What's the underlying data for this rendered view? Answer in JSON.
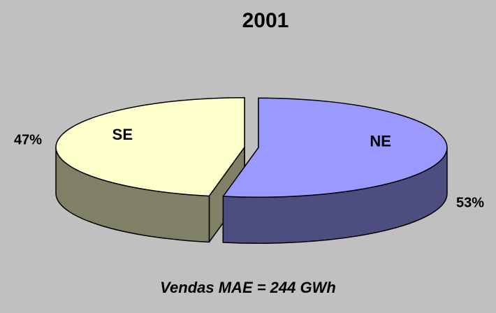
{
  "chart_data": {
    "type": "pie",
    "title": "2001",
    "categories": [
      "NE",
      "SE"
    ],
    "values": [
      53,
      47
    ],
    "value_labels": [
      "53%",
      "47%"
    ],
    "colors": [
      "#9999ff",
      "#ffffcc"
    ],
    "annotation": "Vendas MAE = 244 GWh"
  }
}
